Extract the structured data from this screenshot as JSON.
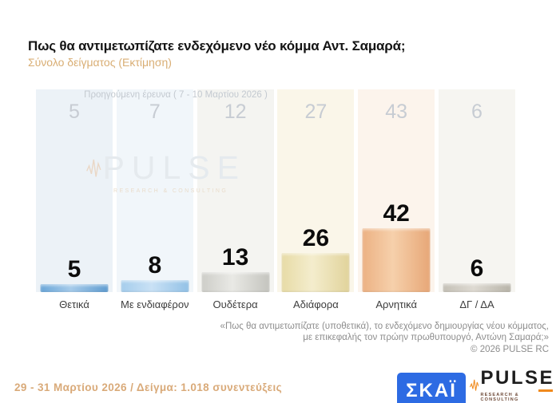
{
  "header": {
    "title": "Πως θα αντιμετωπίζατε ενδεχόμενο νέο κόμμα Αντ. Σαμαρά;",
    "subtitle": "Σύνολο δείγματος  (Εκτίμηση)"
  },
  "chart_data": {
    "type": "bar",
    "title": "Πως θα αντιμετωπίζατε ενδεχόμενο νέο κόμμα Αντ. Σαμαρά;",
    "subtitle": "Σύνολο δείγματος (Εκτίμηση)",
    "categories": [
      "Θετικά",
      "Με ενδιαφέρον",
      "Ουδέτερα",
      "Αδιάφορα",
      "Αρνητικά",
      "ΔΓ / ΔΑ"
    ],
    "series": [
      {
        "name": "Προηγούμενη έρευνα ( 7 - 10 Μαρτίου 2026 )",
        "values": [
          5,
          7,
          12,
          27,
          43,
          6
        ]
      },
      {
        "name": "Εκτίμηση 29 - 31 Μαρτίου 2026",
        "values": [
          5,
          8,
          13,
          26,
          42,
          6
        ]
      }
    ],
    "prev_header": "Προηγούμενη έρευνα ( 7 - 10 Μαρτίου 2026 )",
    "ylim": [
      0,
      50
    ],
    "grid": "off",
    "legend": "none",
    "bar_colors": [
      [
        "#6aa6d8",
        "#a6cbea",
        "#5f9cd0"
      ],
      [
        "#a5cdec",
        "#c9e1f5",
        "#92c1e6"
      ],
      [
        "#cdcdc8",
        "#e9e9e5",
        "#c4c4be"
      ],
      [
        "#e7dba6",
        "#f4edcd",
        "#e1d39b"
      ],
      [
        "#ecb183",
        "#f6d0ab",
        "#e7a777"
      ],
      [
        "#c4c0b6",
        "#dedad2",
        "#b8b4a9"
      ]
    ],
    "band_colors": [
      "#ecf2f7",
      "#f1f6fa",
      "#f4f4f1",
      "#faf6e9",
      "#fcf4ec",
      "#f6f5f1"
    ]
  },
  "watermark": {
    "word": "PULSE",
    "tagline": "RESEARCH & CONSULTING"
  },
  "footnote": {
    "line1": "«Πως θα αντιμετωπίζατε (υποθετικά), το ενδεχόμενο δημιουργίας νέου κόμματος,",
    "line2": "με επικεφαλής τον πρώην πρωθυπουργό, Αντώνη Σαμαρά;»",
    "copyright": "©  2026  PULSE RC"
  },
  "footer": {
    "fieldwork": "29 - 31  Μαρτίου 2026  /  Δείγμα:  1.018 συνεντεύξεις"
  },
  "logos": {
    "skai_label": "ΣΚΑΪ",
    "pulse_label": "PULSE",
    "pulse_tagline": "RESEARCH & CONSULTING"
  },
  "colors": {
    "accent_tan": "#d9aa79",
    "skai_blue": "#2d6be3",
    "pulse_orange": "#f08a1d",
    "footnote_gray": "#8d8d8d",
    "prev_value_gray": "#c7ccd3",
    "current_value_black": "#0c0c0c"
  }
}
